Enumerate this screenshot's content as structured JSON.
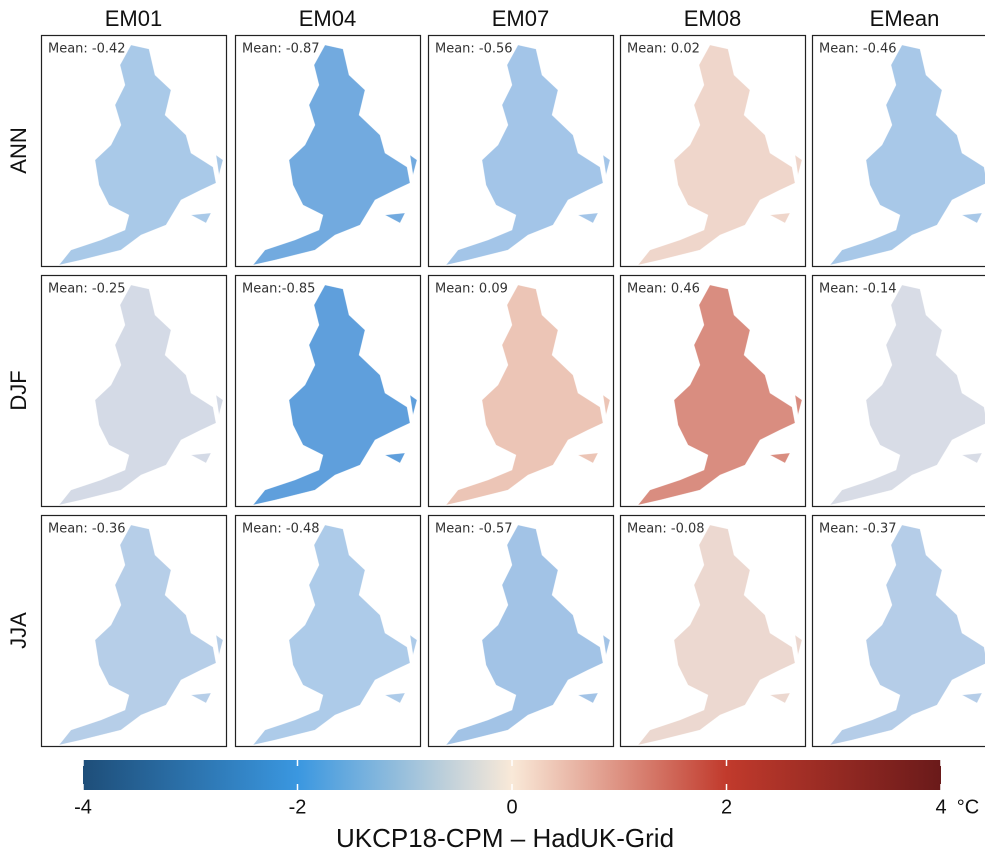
{
  "columns": [
    "EM01",
    "EM04",
    "EM07",
    "EM08",
    "EMean"
  ],
  "rows": [
    "ANN",
    "DJF",
    "JJA"
  ],
  "panels": [
    [
      {
        "label": "Mean: -0.42",
        "color": "#a9c9e8"
      },
      {
        "label": "Mean: -0.87",
        "color": "#72aadf"
      },
      {
        "label": "Mean: -0.56",
        "color": "#a3c5e8"
      },
      {
        "label": "Mean: 0.02",
        "color": "#efd6cb"
      },
      {
        "label": "Mean: -0.46",
        "color": "#a8c8e8"
      }
    ],
    [
      {
        "label": "Mean: -0.25",
        "color": "#d4dae6"
      },
      {
        "label": "Mean:-0.85",
        "color": "#5f9fdc"
      },
      {
        "label": "Mean: 0.09",
        "color": "#ecc5b6"
      },
      {
        "label": "Mean: 0.46",
        "color": "#d98d80"
      },
      {
        "label": "Mean: -0.14",
        "color": "#d8dce6"
      }
    ],
    [
      {
        "label": "Mean: -0.36",
        "color": "#b6cee8"
      },
      {
        "label": "Mean: -0.48",
        "color": "#adcbe9"
      },
      {
        "label": "Mean: -0.57",
        "color": "#a2c3e6"
      },
      {
        "label": "Mean: -0.08",
        "color": "#ecd8d0"
      },
      {
        "label": "Mean: -0.37",
        "color": "#b5cde8"
      }
    ]
  ],
  "colorbar": {
    "lim": [
      -4,
      4
    ],
    "ticks": [
      -4,
      -2,
      0,
      2,
      4
    ],
    "unit": "°C",
    "title": "UKCP18-CPM – HadUK-Grid",
    "colors": [
      "#1e4e79",
      "#3a97e0",
      "#f9e9d8",
      "#c13a2c",
      "#6a1a1a"
    ]
  }
}
